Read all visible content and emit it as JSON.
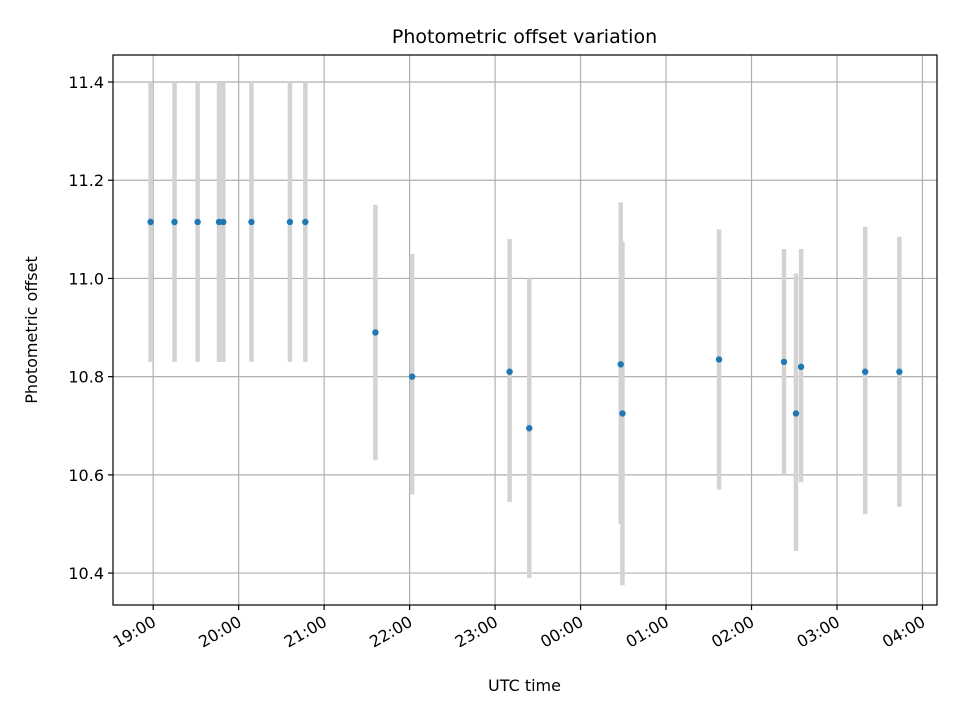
{
  "chart_data": {
    "type": "scatter",
    "title": "Photometric offset variation",
    "xlabel": "UTC time",
    "ylabel": "Photometric offset",
    "xlim": [
      18.53,
      28.17
    ],
    "ylim": [
      10.335,
      11.455
    ],
    "yticks": [
      10.4,
      10.6,
      10.8,
      11.0,
      11.2,
      11.4
    ],
    "ytick_labels": [
      "10.4",
      "10.6",
      "10.8",
      "11.0",
      "11.2",
      "11.4"
    ],
    "xticks": [
      19,
      20,
      21,
      22,
      23,
      24,
      25,
      26,
      27,
      28
    ],
    "xtick_labels": [
      "19:00",
      "20:00",
      "21:00",
      "22:00",
      "23:00",
      "00:00",
      "01:00",
      "02:00",
      "03:00",
      "04:00"
    ],
    "grid": true,
    "colors": {
      "point": "#1f77b4",
      "errorbar": "#d3d3d3",
      "grid": "#b0b0b0"
    },
    "points": [
      {
        "x": 18.97,
        "y": 11.115,
        "ylow": 10.83,
        "yhigh": 11.4
      },
      {
        "x": 19.25,
        "y": 11.115,
        "ylow": 10.83,
        "yhigh": 11.4
      },
      {
        "x": 19.52,
        "y": 11.115,
        "ylow": 10.83,
        "yhigh": 11.4
      },
      {
        "x": 19.77,
        "y": 11.115,
        "ylow": 10.83,
        "yhigh": 11.4
      },
      {
        "x": 19.82,
        "y": 11.115,
        "ylow": 10.83,
        "yhigh": 11.4
      },
      {
        "x": 20.15,
        "y": 11.115,
        "ylow": 10.83,
        "yhigh": 11.4
      },
      {
        "x": 20.6,
        "y": 11.115,
        "ylow": 10.83,
        "yhigh": 11.4
      },
      {
        "x": 20.78,
        "y": 11.115,
        "ylow": 10.83,
        "yhigh": 11.4
      },
      {
        "x": 21.6,
        "y": 10.89,
        "ylow": 10.63,
        "yhigh": 11.15
      },
      {
        "x": 22.03,
        "y": 10.8,
        "ylow": 10.56,
        "yhigh": 11.05
      },
      {
        "x": 23.17,
        "y": 10.81,
        "ylow": 10.545,
        "yhigh": 11.08
      },
      {
        "x": 23.4,
        "y": 10.695,
        "ylow": 10.39,
        "yhigh": 11.0
      },
      {
        "x": 24.47,
        "y": 10.825,
        "ylow": 10.5,
        "yhigh": 11.155
      },
      {
        "x": 24.49,
        "y": 10.725,
        "ylow": 10.375,
        "yhigh": 11.075
      },
      {
        "x": 25.62,
        "y": 10.835,
        "ylow": 10.57,
        "yhigh": 11.1
      },
      {
        "x": 26.38,
        "y": 10.83,
        "ylow": 10.6,
        "yhigh": 11.06
      },
      {
        "x": 26.52,
        "y": 10.725,
        "ylow": 10.445,
        "yhigh": 11.01
      },
      {
        "x": 26.58,
        "y": 10.82,
        "ylow": 10.585,
        "yhigh": 11.06
      },
      {
        "x": 27.33,
        "y": 10.81,
        "ylow": 10.52,
        "yhigh": 11.105
      },
      {
        "x": 27.73,
        "y": 10.81,
        "ylow": 10.535,
        "yhigh": 11.085
      }
    ]
  }
}
